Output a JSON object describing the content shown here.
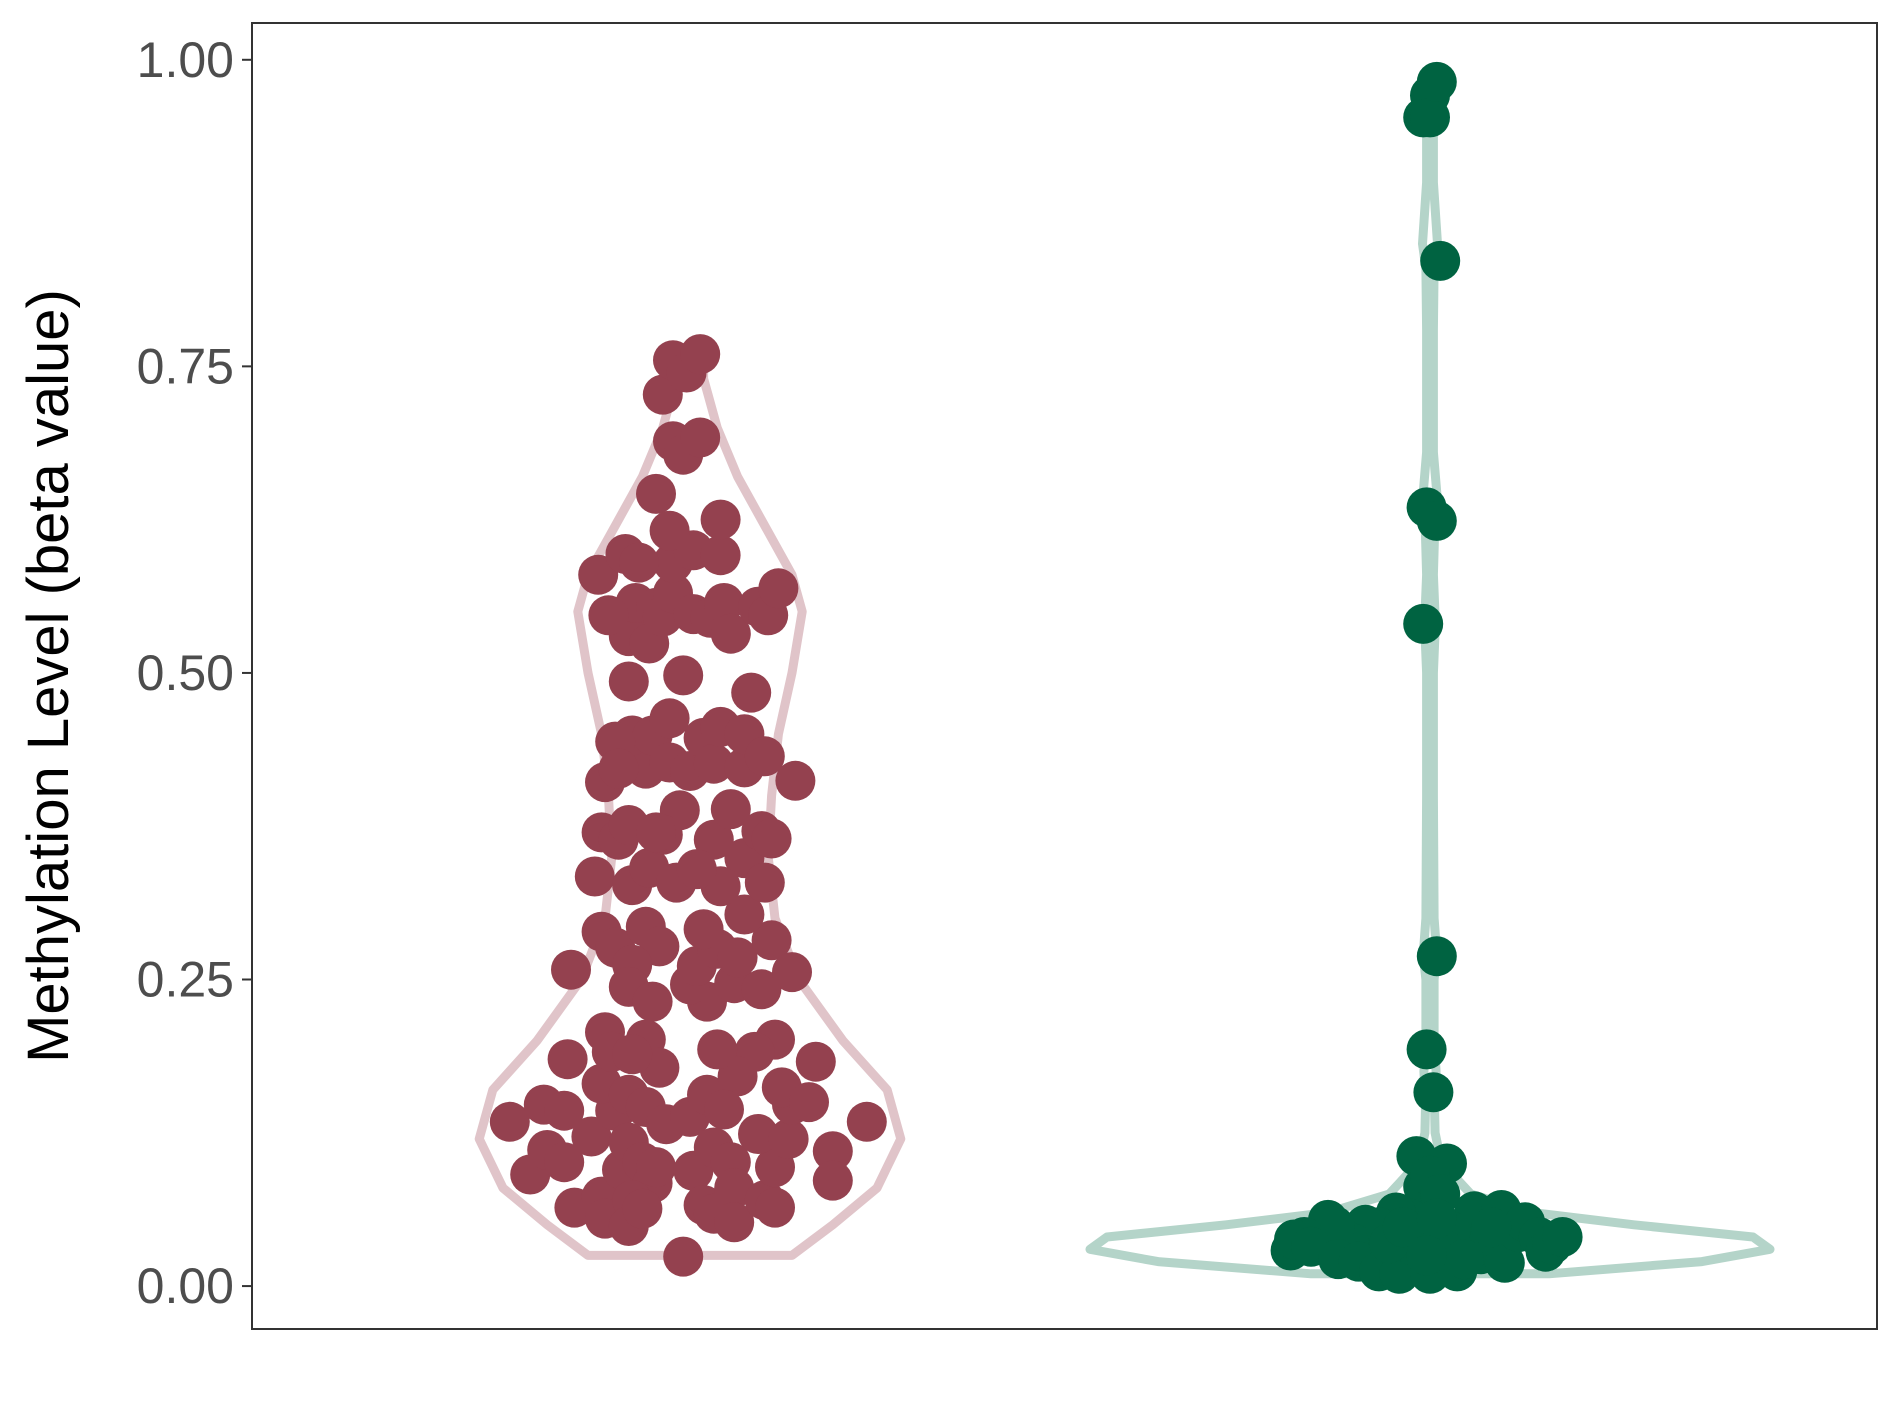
{
  "chart_data": {
    "type": "violin",
    "ylabel": "Methylation Level (beta value)",
    "ylim": [
      -0.035,
      1.03
    ],
    "yticks": [
      0.0,
      0.25,
      0.5,
      0.75,
      1.0
    ],
    "ytick_labels": [
      "0.00",
      "0.25",
      "0.50",
      "0.75",
      "1.00"
    ],
    "grid": false,
    "series": [
      {
        "color": "#94414f",
        "outline_color": "#e0c4c9",
        "violin": {
          "y": [
            0.025,
            0.05,
            0.08,
            0.12,
            0.16,
            0.2,
            0.25,
            0.3,
            0.35,
            0.4,
            0.45,
            0.5,
            0.55,
            0.58,
            0.62,
            0.66,
            0.7,
            0.74,
            0.76
          ],
          "half_width": [
            0.3,
            0.42,
            0.55,
            0.62,
            0.58,
            0.45,
            0.32,
            0.25,
            0.23,
            0.24,
            0.26,
            0.3,
            0.33,
            0.3,
            0.22,
            0.14,
            0.08,
            0.04,
            0.04
          ]
        },
        "points": [
          [
            -0.53,
            0.134
          ],
          [
            -0.47,
            0.091
          ],
          [
            -0.42,
            0.111
          ],
          [
            -0.43,
            0.148
          ],
          [
            -0.36,
            0.185
          ],
          [
            -0.37,
            0.143
          ],
          [
            -0.37,
            0.101
          ],
          [
            -0.34,
            0.064
          ],
          [
            -0.29,
            0.122
          ],
          [
            -0.26,
            0.073
          ],
          [
            -0.25,
            0.055
          ],
          [
            -0.22,
            0.143
          ],
          [
            -0.2,
            0.095
          ],
          [
            -0.26,
            0.165
          ],
          [
            -0.25,
            0.207
          ],
          [
            -0.23,
            0.191
          ],
          [
            -0.35,
            0.258
          ],
          [
            -0.26,
            0.289
          ],
          [
            -0.22,
            0.276
          ],
          [
            -0.28,
            0.334
          ],
          [
            -0.26,
            0.37
          ],
          [
            -0.21,
            0.364
          ],
          [
            -0.18,
            0.376
          ],
          [
            -0.17,
            0.327
          ],
          [
            -0.12,
            0.341
          ],
          [
            -0.13,
            0.293
          ],
          [
            -0.09,
            0.277
          ],
          [
            -0.17,
            0.262
          ],
          [
            -0.18,
            0.244
          ],
          [
            -0.11,
            0.232
          ],
          [
            -0.13,
            0.201
          ],
          [
            -0.09,
            0.178
          ],
          [
            -0.17,
            0.189
          ],
          [
            -0.18,
            0.156
          ],
          [
            -0.13,
            0.146
          ],
          [
            -0.18,
            0.117
          ],
          [
            -0.14,
            0.101
          ],
          [
            -0.11,
            0.084
          ],
          [
            -0.17,
            0.07
          ],
          [
            -0.18,
            0.049
          ],
          [
            -0.14,
            0.063
          ],
          [
            -0.1,
            0.097
          ],
          [
            -0.07,
            0.132
          ],
          [
            -0.02,
            0.024
          ],
          [
            0.0,
            0.138
          ],
          [
            0.05,
            0.156
          ],
          [
            0.01,
            0.094
          ],
          [
            0.04,
            0.066
          ],
          [
            0.07,
            0.059
          ],
          [
            0.07,
            0.113
          ],
          [
            0.12,
            0.101
          ],
          [
            0.13,
            0.08
          ],
          [
            0.13,
            0.052
          ],
          [
            0.22,
            0.07
          ],
          [
            0.25,
            0.064
          ],
          [
            0.25,
            0.097
          ],
          [
            0.2,
            0.124
          ],
          [
            0.29,
            0.12
          ],
          [
            0.3,
            0.148
          ],
          [
            0.27,
            0.162
          ],
          [
            0.35,
            0.15
          ],
          [
            0.42,
            0.11
          ],
          [
            0.42,
            0.086
          ],
          [
            0.52,
            0.134
          ],
          [
            0.37,
            0.183
          ],
          [
            0.25,
            0.201
          ],
          [
            0.19,
            0.191
          ],
          [
            0.14,
            0.171
          ],
          [
            0.1,
            0.144
          ],
          [
            0.08,
            0.193
          ],
          [
            0.05,
            0.232
          ],
          [
            0.0,
            0.246
          ],
          [
            0.02,
            0.261
          ],
          [
            0.08,
            0.275
          ],
          [
            0.04,
            0.291
          ],
          [
            0.13,
            0.247
          ],
          [
            0.14,
            0.268
          ],
          [
            0.21,
            0.242
          ],
          [
            0.24,
            0.282
          ],
          [
            0.3,
            0.256
          ],
          [
            0.16,
            0.303
          ],
          [
            0.16,
            0.349
          ],
          [
            0.21,
            0.371
          ],
          [
            0.24,
            0.365
          ],
          [
            0.22,
            0.329
          ],
          [
            0.09,
            0.326
          ],
          [
            0.07,
            0.364
          ],
          [
            0.12,
            0.389
          ],
          [
            -0.03,
            0.388
          ],
          [
            -0.04,
            0.329
          ],
          [
            0.02,
            0.34
          ],
          [
            -0.08,
            0.368
          ],
          [
            -0.1,
            0.37
          ],
          [
            -0.13,
            0.422
          ],
          [
            -0.17,
            0.449
          ],
          [
            -0.11,
            0.449
          ],
          [
            -0.06,
            0.427
          ],
          [
            -0.06,
            0.463
          ],
          [
            0.0,
            0.42
          ],
          [
            0.04,
            0.447
          ],
          [
            0.07,
            0.426
          ],
          [
            0.09,
            0.456
          ],
          [
            0.16,
            0.423
          ],
          [
            0.16,
            0.45
          ],
          [
            0.18,
            0.484
          ],
          [
            0.22,
            0.432
          ],
          [
            0.31,
            0.412
          ],
          [
            -0.25,
            0.411
          ],
          [
            -0.22,
            0.444
          ],
          [
            -0.21,
            0.422
          ],
          [
            -0.18,
            0.493
          ],
          [
            -0.18,
            0.53
          ],
          [
            -0.16,
            0.557
          ],
          [
            -0.12,
            0.524
          ],
          [
            -0.1,
            0.553
          ],
          [
            -0.08,
            0.546
          ],
          [
            -0.05,
            0.565
          ],
          [
            -0.05,
            0.59
          ],
          [
            -0.02,
            0.498
          ],
          [
            0.01,
            0.6
          ],
          [
            0.01,
            0.548
          ],
          [
            0.06,
            0.545
          ],
          [
            0.09,
            0.596
          ],
          [
            0.1,
            0.557
          ],
          [
            0.12,
            0.532
          ],
          [
            0.2,
            0.554
          ],
          [
            0.23,
            0.547
          ],
          [
            0.26,
            0.569
          ],
          [
            -0.24,
            0.547
          ],
          [
            -0.27,
            0.58
          ],
          [
            -0.19,
            0.597
          ],
          [
            -0.15,
            0.59
          ],
          [
            -0.1,
            0.646
          ],
          [
            -0.06,
            0.616
          ],
          [
            0.09,
            0.625
          ],
          [
            -0.08,
            0.727
          ],
          [
            -0.05,
            0.689
          ],
          [
            -0.02,
            0.678
          ],
          [
            0.03,
            0.692
          ],
          [
            -0.05,
            0.755
          ],
          [
            -0.01,
            0.745
          ],
          [
            0.03,
            0.76
          ]
        ]
      },
      {
        "color": "#006341",
        "outline_color": "#b4d4c9",
        "violin": {
          "y": [
            0.01,
            0.02,
            0.03,
            0.04,
            0.05,
            0.06,
            0.075,
            0.09,
            0.105,
            0.125,
            0.15,
            0.175,
            0.2,
            0.25,
            0.27,
            0.3,
            0.4,
            0.5,
            0.54,
            0.58,
            0.62,
            0.64,
            0.68,
            0.78,
            0.83,
            0.85,
            0.9,
            0.94,
            0.96,
            0.975,
            0.985
          ],
          "half_width": [
            0.35,
            0.8,
            1.0,
            0.95,
            0.6,
            0.3,
            0.12,
            0.07,
            0.03,
            0.015,
            0.013,
            0.018,
            0.012,
            0.012,
            0.02,
            0.012,
            0.01,
            0.01,
            0.016,
            0.01,
            0.014,
            0.022,
            0.01,
            0.01,
            0.012,
            0.022,
            0.01,
            0.01,
            0.03,
            0.04,
            0.02
          ]
        },
        "points": [
          [
            -0.02,
            0.953
          ],
          [
            0.0,
            0.971
          ],
          [
            0.0,
            0.953
          ],
          [
            0.02,
            0.982
          ],
          [
            0.03,
            0.836
          ],
          [
            -0.01,
            0.635
          ],
          [
            0.02,
            0.624
          ],
          [
            -0.02,
            0.54
          ],
          [
            0.02,
            0.269
          ],
          [
            -0.01,
            0.193
          ],
          [
            0.01,
            0.158
          ],
          [
            -0.04,
            0.106
          ],
          [
            0.05,
            0.1
          ],
          [
            -0.02,
            0.081
          ],
          [
            0.0,
            0.09
          ],
          [
            0.03,
            0.075
          ],
          [
            -0.06,
            0.055
          ],
          [
            -0.1,
            0.06
          ],
          [
            -0.15,
            0.048
          ],
          [
            -0.19,
            0.05
          ],
          [
            -0.22,
            0.034
          ],
          [
            -0.24,
            0.036
          ],
          [
            -0.3,
            0.054
          ],
          [
            -0.28,
            0.049
          ],
          [
            -0.37,
            0.04
          ],
          [
            -0.41,
            0.029
          ],
          [
            -0.4,
            0.038
          ],
          [
            -0.35,
            0.032
          ],
          [
            -0.27,
            0.022
          ],
          [
            -0.21,
            0.02
          ],
          [
            -0.15,
            0.012
          ],
          [
            -0.09,
            0.01
          ],
          [
            -0.05,
            0.033
          ],
          [
            0.0,
            0.01
          ],
          [
            0.08,
            0.012
          ],
          [
            0.13,
            0.061
          ],
          [
            0.14,
            0.037
          ],
          [
            0.15,
            0.026
          ],
          [
            0.21,
            0.062
          ],
          [
            0.22,
            0.019
          ],
          [
            0.26,
            0.044
          ],
          [
            0.28,
            0.052
          ],
          [
            0.32,
            0.04
          ],
          [
            0.34,
            0.028
          ],
          [
            0.36,
            0.034
          ],
          [
            0.39,
            0.04
          ],
          [
            0.06,
            0.045
          ],
          [
            0.04,
            0.03
          ],
          [
            -0.03,
            0.04
          ],
          [
            0.1,
            0.022
          ],
          [
            -0.12,
            0.035
          ],
          [
            0.18,
            0.048
          ],
          [
            -0.08,
            0.048
          ],
          [
            0.02,
            0.055
          ],
          [
            -0.01,
            0.025
          ]
        ]
      }
    ]
  }
}
